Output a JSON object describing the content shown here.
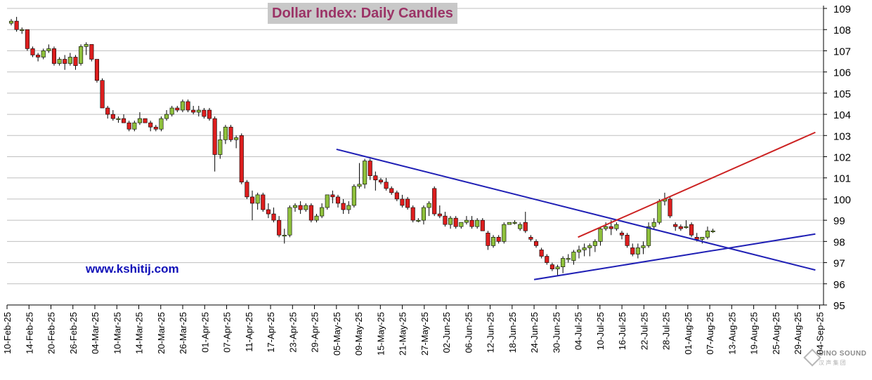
{
  "chart_data": {
    "type": "candlestick",
    "title": "Dollar Index: Daily Candles",
    "ylim": [
      95,
      109
    ],
    "y_ticks": [
      95,
      96,
      97,
      98,
      99,
      100,
      101,
      102,
      103,
      104,
      105,
      106,
      107,
      108,
      109
    ],
    "y_axis_side": "right",
    "grid": "horizontal",
    "x_tick_labels": [
      "10-Feb-25",
      "14-Feb-25",
      "20-Feb-25",
      "26-Feb-25",
      "04-Mar-25",
      "10-Mar-25",
      "14-Mar-25",
      "20-Mar-25",
      "26-Mar-25",
      "01-Apr-25",
      "07-Apr-25",
      "11-Apr-25",
      "17-Apr-25",
      "23-Apr-25",
      "29-Apr-25",
      "05-May-25",
      "09-May-25",
      "15-May-25",
      "21-May-25",
      "27-May-25",
      "02-Jun-25",
      "06-Jun-25",
      "12-Jun-25",
      "18-Jun-25",
      "24-Jun-25",
      "30-Jun-25",
      "04-Jul-25",
      "10-Jul-25",
      "16-Jul-25",
      "22-Jul-25",
      "28-Jul-25",
      "01-Aug-25",
      "07-Aug-25",
      "13-Aug-25",
      "19-Aug-25",
      "25-Aug-25",
      "29-Aug-25",
      "04-Sep-25"
    ],
    "candles": [
      [
        108.3,
        108.5,
        108.2,
        108.4
      ],
      [
        108.4,
        108.6,
        107.9,
        108.0
      ],
      [
        108.0,
        108.1,
        107.8,
        108.0
      ],
      [
        108.0,
        108.0,
        107.0,
        107.1
      ],
      [
        107.1,
        107.2,
        106.7,
        106.8
      ],
      [
        106.8,
        106.9,
        106.5,
        106.7
      ],
      [
        106.7,
        107.1,
        106.6,
        107.0
      ],
      [
        107.0,
        107.3,
        106.9,
        107.1
      ],
      [
        107.1,
        107.2,
        106.3,
        106.4
      ],
      [
        106.4,
        106.7,
        106.3,
        106.6
      ],
      [
        106.6,
        106.8,
        106.1,
        106.4
      ],
      [
        106.4,
        106.9,
        106.3,
        106.7
      ],
      [
        106.7,
        106.8,
        106.1,
        106.3
      ],
      [
        106.4,
        107.3,
        106.3,
        107.2
      ],
      [
        107.2,
        107.4,
        106.8,
        107.3
      ],
      [
        107.3,
        107.3,
        106.5,
        106.6
      ],
      [
        106.6,
        106.6,
        105.5,
        105.6
      ],
      [
        105.6,
        105.7,
        104.3,
        104.3
      ],
      [
        104.3,
        104.4,
        103.8,
        104.0
      ],
      [
        104.0,
        104.2,
        103.7,
        103.8
      ],
      [
        103.8,
        103.9,
        103.6,
        103.8
      ],
      [
        103.8,
        104.0,
        103.6,
        103.6
      ],
      [
        103.6,
        103.7,
        103.2,
        103.3
      ],
      [
        103.3,
        103.7,
        103.2,
        103.6
      ],
      [
        103.6,
        104.1,
        103.5,
        103.8
      ],
      [
        103.8,
        103.8,
        103.6,
        103.6
      ],
      [
        103.6,
        103.7,
        103.2,
        103.4
      ],
      [
        103.4,
        103.5,
        103.2,
        103.3
      ],
      [
        103.3,
        103.9,
        103.2,
        103.8
      ],
      [
        103.8,
        104.2,
        103.7,
        104.0
      ],
      [
        104.0,
        104.4,
        103.9,
        104.3
      ],
      [
        104.3,
        104.4,
        104.1,
        104.2
      ],
      [
        104.2,
        104.7,
        104.1,
        104.6
      ],
      [
        104.6,
        104.7,
        104.1,
        104.2
      ],
      [
        104.2,
        104.4,
        104.0,
        104.1
      ],
      [
        104.1,
        104.4,
        103.9,
        104.2
      ],
      [
        104.2,
        104.3,
        103.8,
        103.9
      ],
      [
        104.2,
        104.3,
        103.7,
        103.8
      ],
      [
        103.8,
        103.9,
        101.3,
        102.1
      ],
      [
        102.1,
        103.2,
        101.9,
        102.8
      ],
      [
        102.8,
        103.5,
        102.6,
        103.4
      ],
      [
        103.4,
        103.5,
        102.7,
        102.8
      ],
      [
        102.8,
        103.0,
        102.4,
        102.9
      ],
      [
        103.0,
        103.1,
        100.7,
        100.8
      ],
      [
        100.8,
        100.9,
        100.0,
        100.1
      ],
      [
        100.1,
        100.4,
        99.0,
        99.8
      ],
      [
        99.8,
        100.3,
        99.5,
        100.2
      ],
      [
        100.2,
        100.3,
        99.4,
        99.5
      ],
      [
        99.5,
        99.8,
        99.1,
        99.3
      ],
      [
        99.3,
        99.6,
        98.9,
        99.0
      ],
      [
        99.0,
        99.2,
        98.2,
        98.3
      ],
      [
        98.3,
        98.6,
        97.9,
        98.3
      ],
      [
        98.3,
        99.7,
        98.2,
        99.6
      ],
      [
        99.6,
        99.8,
        99.4,
        99.7
      ],
      [
        99.7,
        99.9,
        99.3,
        99.5
      ],
      [
        99.5,
        99.8,
        99.4,
        99.7
      ],
      [
        99.7,
        99.8,
        98.9,
        99.0
      ],
      [
        99.0,
        99.3,
        98.9,
        99.2
      ],
      [
        99.2,
        99.8,
        99.1,
        99.6
      ],
      [
        99.6,
        100.1,
        99.5,
        100.2
      ],
      [
        100.2,
        100.4,
        99.8,
        100.1
      ],
      [
        100.1,
        100.2,
        99.6,
        99.8
      ],
      [
        99.8,
        100.0,
        99.3,
        99.5
      ],
      [
        99.5,
        99.9,
        99.3,
        99.7
      ],
      [
        99.7,
        100.7,
        99.6,
        100.6
      ],
      [
        100.6,
        101.7,
        100.5,
        100.7
      ],
      [
        100.7,
        101.9,
        100.5,
        101.8
      ],
      [
        101.8,
        101.9,
        100.9,
        101.1
      ],
      [
        101.1,
        101.3,
        100.4,
        100.9
      ],
      [
        100.9,
        101.0,
        100.7,
        100.8
      ],
      [
        100.8,
        101.0,
        100.4,
        100.5
      ],
      [
        100.5,
        100.6,
        100.2,
        100.3
      ],
      [
        100.3,
        100.4,
        99.9,
        100.0
      ],
      [
        100.0,
        100.2,
        99.6,
        99.7
      ],
      [
        100.0,
        100.1,
        99.5,
        99.6
      ],
      [
        99.6,
        99.7,
        98.9,
        99.0
      ],
      [
        99.0,
        99.1,
        98.9,
        99.0
      ],
      [
        99.0,
        99.7,
        98.8,
        99.6
      ],
      [
        99.6,
        99.9,
        99.2,
        99.8
      ],
      [
        100.5,
        100.6,
        99.2,
        99.3
      ],
      [
        99.3,
        99.7,
        99.1,
        99.2
      ],
      [
        99.2,
        99.4,
        98.7,
        98.8
      ],
      [
        98.8,
        99.2,
        98.6,
        99.1
      ],
      [
        99.1,
        99.2,
        98.6,
        98.7
      ],
      [
        98.7,
        98.9,
        98.6,
        98.9
      ],
      [
        98.9,
        99.2,
        98.8,
        99.0
      ],
      [
        99.0,
        99.2,
        98.6,
        98.7
      ],
      [
        98.7,
        99.1,
        98.6,
        99.0
      ],
      [
        99.0,
        99.1,
        98.5,
        98.5
      ],
      [
        98.4,
        98.5,
        97.6,
        97.8
      ],
      [
        97.8,
        98.3,
        97.7,
        98.2
      ],
      [
        98.2,
        98.3,
        97.9,
        98.0
      ],
      [
        98.0,
        98.9,
        97.9,
        98.8
      ],
      [
        98.8,
        98.9,
        98.8,
        98.9
      ],
      [
        98.9,
        99.0,
        98.8,
        98.9
      ],
      [
        98.6,
        98.9,
        98.5,
        98.8
      ],
      [
        98.9,
        99.4,
        98.4,
        98.5
      ],
      [
        98.2,
        98.3,
        98.0,
        98.1
      ],
      [
        98.0,
        98.1,
        97.7,
        97.8
      ],
      [
        97.6,
        97.7,
        97.2,
        97.3
      ],
      [
        97.3,
        97.4,
        96.9,
        97.0
      ],
      [
        96.9,
        97.0,
        96.6,
        96.7
      ],
      [
        96.7,
        96.9,
        96.4,
        96.8
      ],
      [
        96.8,
        97.3,
        96.5,
        97.2
      ],
      [
        97.2,
        97.4,
        97.0,
        97.2
      ],
      [
        97.1,
        97.6,
        96.9,
        97.5
      ],
      [
        97.5,
        97.8,
        97.2,
        97.6
      ],
      [
        97.6,
        97.9,
        97.3,
        97.7
      ],
      [
        97.7,
        97.9,
        97.3,
        97.8
      ],
      [
        97.8,
        98.1,
        97.5,
        98.0
      ],
      [
        98.0,
        98.7,
        97.8,
        98.6
      ],
      [
        98.6,
        98.9,
        98.5,
        98.7
      ],
      [
        98.7,
        99.0,
        98.3,
        98.6
      ],
      [
        98.6,
        98.9,
        98.5,
        98.8
      ],
      [
        98.4,
        98.5,
        98.1,
        98.3
      ],
      [
        98.3,
        98.4,
        97.7,
        97.8
      ],
      [
        97.7,
        97.9,
        97.3,
        97.4
      ],
      [
        97.4,
        97.9,
        97.2,
        97.7
      ],
      [
        97.7,
        98.0,
        97.4,
        97.8
      ],
      [
        97.8,
        98.9,
        97.7,
        98.7
      ],
      [
        98.7,
        99.1,
        98.6,
        98.9
      ],
      [
        98.9,
        100.0,
        98.8,
        99.9
      ],
      [
        99.9,
        100.3,
        99.7,
        100.0
      ],
      [
        100.0,
        100.1,
        99.1,
        99.2
      ],
      [
        98.8,
        98.9,
        98.5,
        98.7
      ],
      [
        98.7,
        98.8,
        98.5,
        98.6
      ],
      [
        98.7,
        99.0,
        98.6,
        98.7
      ],
      [
        98.8,
        98.9,
        98.2,
        98.3
      ],
      [
        98.2,
        98.4,
        98.0,
        98.1
      ],
      [
        98.1,
        98.2,
        97.9,
        98.2
      ],
      [
        98.2,
        98.7,
        98.1,
        98.5
      ],
      [
        98.5,
        98.6,
        98.4,
        98.5
      ]
    ],
    "trendlines": [
      {
        "color": "#1f1fb5",
        "from": [
          "05-May-25",
          102.35
        ],
        "to": [
          "04-Sep-25",
          96.65
        ]
      },
      {
        "color": "#1f1fb5",
        "from": [
          "24-Jun-25",
          96.2
        ],
        "to": [
          "04-Sep-25",
          98.35
        ]
      },
      {
        "color": "#cc2222",
        "from": [
          "04-Jul-25",
          98.2
        ],
        "to": [
          "04-Sep-25",
          103.15
        ]
      }
    ],
    "colors": {
      "up": "#8fc13c",
      "down": "#dd1e1e",
      "wick": "#000000",
      "grid": "#bfbfbf"
    }
  },
  "site_label": "www.kshitij.com",
  "logo": {
    "name": "SINO SOUND",
    "sub": "汉 声 集 团"
  }
}
